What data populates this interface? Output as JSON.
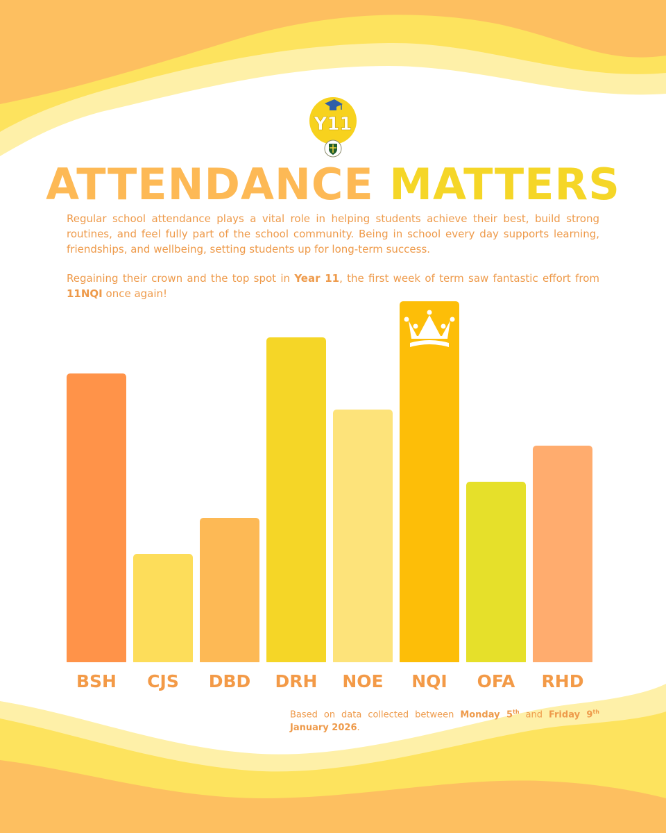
{
  "header": {
    "logo_text": "Y11",
    "title_part1": "ATTENDANCE",
    "title_part2": "MATTERS"
  },
  "intro": {
    "paragraph1": "Regular school attendance plays a vital role in helping students achieve their best, build strong routines, and feel fully part of the school community. Being in school every day supports learning, friendships, and wellbeing, setting students up for long-term success.",
    "p2_a": "Regaining their crown and the top spot in ",
    "p2_year": "Year 11",
    "p2_b": ", the first week of term saw fantastic effort from ",
    "p2_form": "11NQI",
    "p2_c": " once again!"
  },
  "colors": {
    "bars": [
      "#FF9349",
      "#FDDD5A",
      "#FDB955",
      "#F5D627",
      "#FDE37A",
      "#FDBE08",
      "#E6E02A",
      "#FFAC6E"
    ],
    "label": "#F39A47",
    "title_orange": "#FDB955",
    "title_yellow": "#F5D627"
  },
  "chart_data": {
    "type": "bar",
    "title": "",
    "xlabel": "",
    "ylabel": "",
    "categories": [
      "BSH",
      "CJS",
      "DBD",
      "DRH",
      "NOE",
      "NQI",
      "OFA",
      "RHD"
    ],
    "values": [
      8,
      3,
      4,
      9,
      7,
      10,
      5,
      6
    ],
    "ylim": [
      0,
      10
    ],
    "value_note": "relative rank scale; no values printed on the chart",
    "highlight": {
      "category": "NQI",
      "icon": "crown-icon"
    },
    "grid": false
  },
  "footnote": {
    "a": "Based on data collected between ",
    "d1": "Monday 5",
    "s1": "th",
    "mid": " and ",
    "d2": "Friday 9",
    "s2": "th",
    "d3": "January 2026",
    "end": "."
  }
}
